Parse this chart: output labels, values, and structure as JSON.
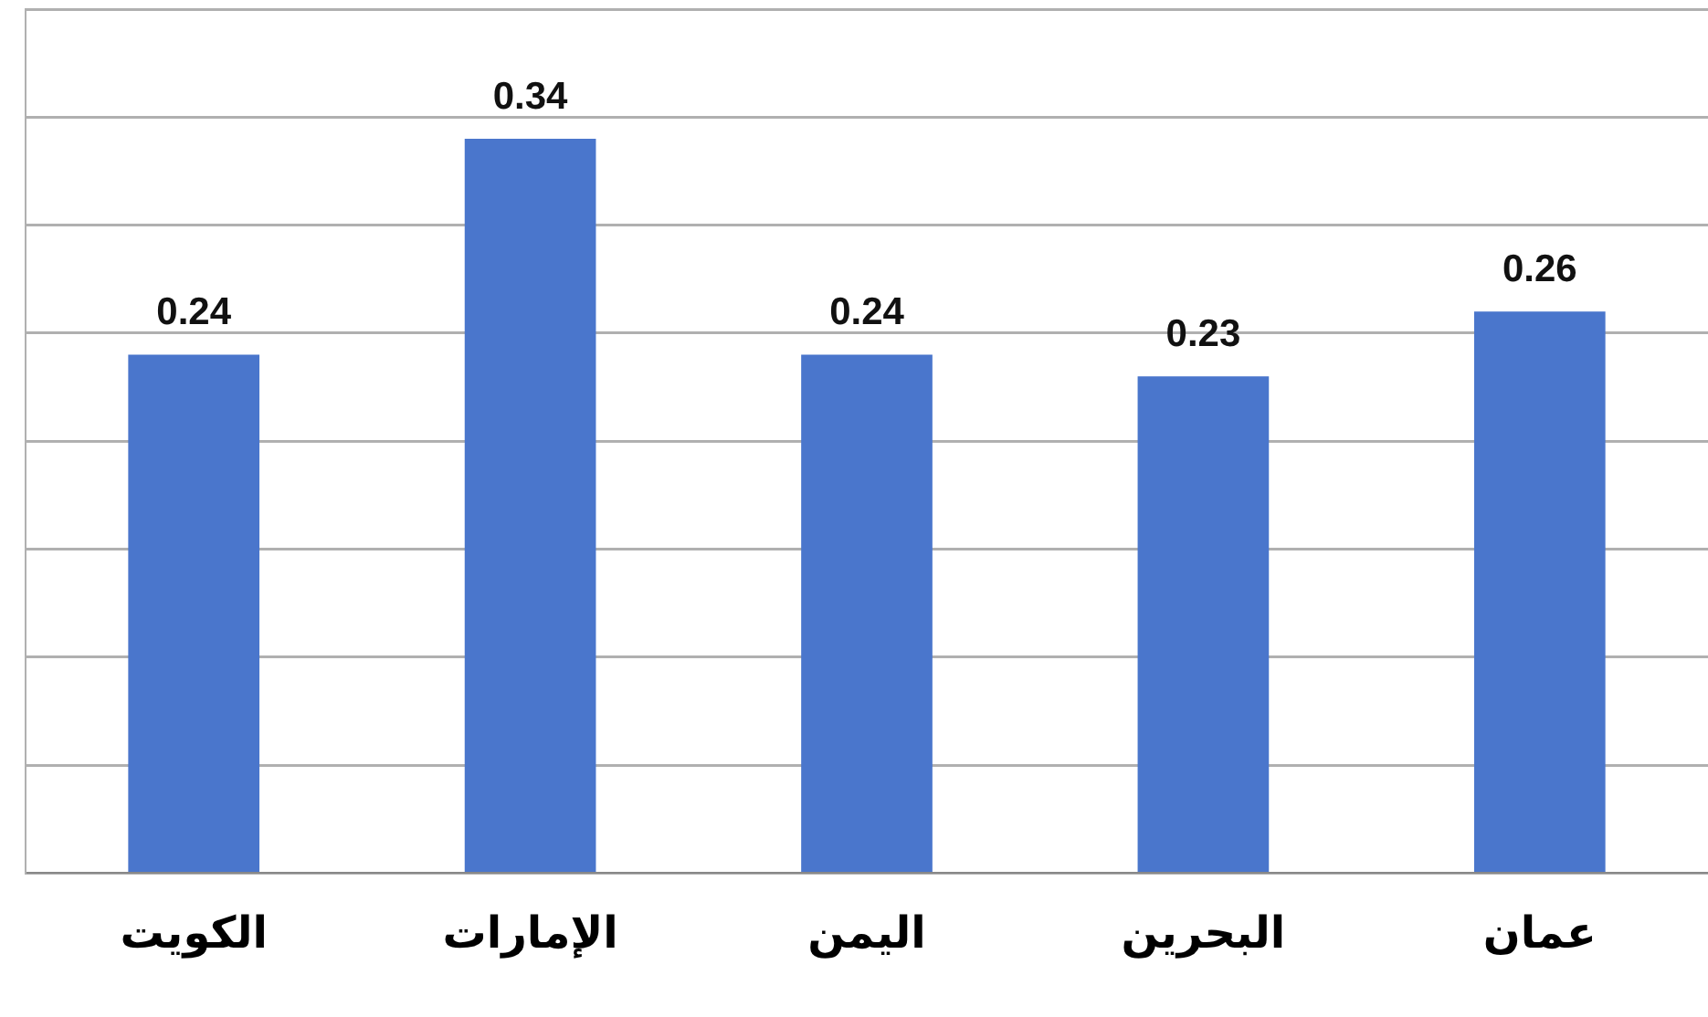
{
  "chart_data": {
    "type": "bar",
    "categories": [
      "الكويت",
      "الإمارات",
      "اليمن",
      "البحرين",
      "عمان"
    ],
    "values": [
      0.24,
      0.34,
      0.24,
      0.23,
      0.26
    ],
    "color": "#4a76cc",
    "ylim": [
      0,
      0.4
    ],
    "yticks": [
      {
        "value": 0,
        "label": null
      },
      {
        "value": 0.05,
        "label": null
      },
      {
        "value": 0.1,
        "label": null
      },
      {
        "value": 0.15,
        "label": null
      },
      {
        "value": 0.2,
        "label": null
      },
      {
        "value": 0.25,
        "label": null
      },
      {
        "value": 0.3,
        "label": null
      },
      {
        "value": 0.35,
        "label": null
      },
      {
        "value": 0.4,
        "label": null
      }
    ],
    "grid": "y",
    "tick_labels": "x",
    "data_labels": true
  }
}
